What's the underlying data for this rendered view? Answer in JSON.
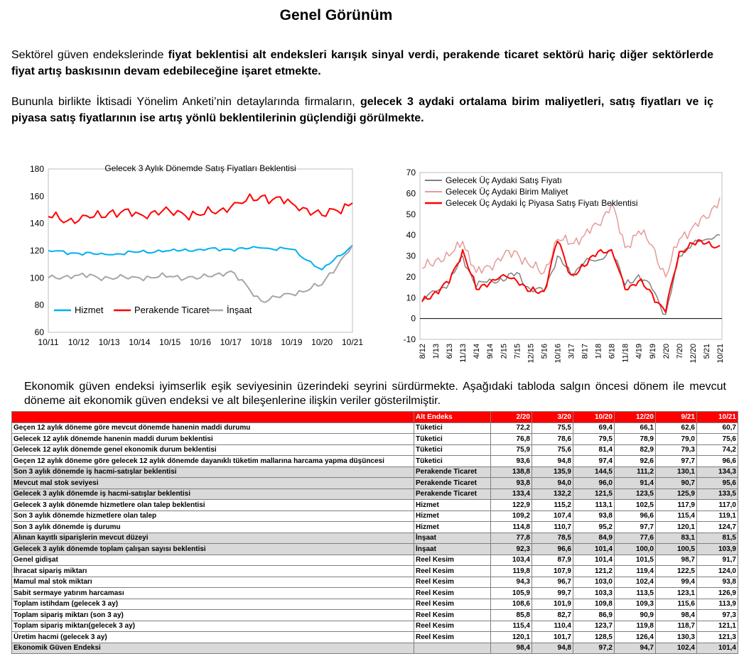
{
  "page": {
    "title": "Genel Görünüm",
    "paragraph1": {
      "normal": "Sektörel güven endekslerinde ",
      "bold": "fiyat beklentisi alt endeksleri karışık sinyal verdi, perakende ticaret sektörü hariç diğer sektörlerde fiyat artış baskısının devam edebileceğine işaret etmekte."
    },
    "paragraph2": {
      "normal": "Bununla birlikte İktisadi Yönelim Anketi’nin detaylarında firmaların, ",
      "bold": "gelecek 3 aydaki ortalama birim maliyetleri, satış fiyatları ve iç piyasa satış fiyatlarının ise artış yönlü beklentilerinin güçlendiği görülmekte."
    },
    "paragraph3": "Ekonomik güven endeksi iyimserlik eşik seviyesinin üzerindeki seyrini sürdürmekte. Aşağıdaki tabloda salgın öncesi dönem ile mevcut döneme ait ekonomik güven endeksi ve alt bileşenlerine ilişkin veriler gösterilmiştir."
  },
  "chart_data": [
    {
      "type": "line",
      "title": "Gelecek 3 Aylık Dönemde Satış Fiyatları Beklentisi",
      "x": [
        "10/11",
        "10/12",
        "10/13",
        "10/14",
        "10/15",
        "10/16",
        "10/17",
        "10/18",
        "10/19",
        "10/20",
        "10/21"
      ],
      "ylim": [
        60,
        180
      ],
      "yticks": [
        60,
        80,
        100,
        120,
        140,
        160,
        180
      ],
      "legend_position": "bottom",
      "grid": false,
      "series": [
        {
          "name": "Hizmet",
          "color": "#00b0f0",
          "values": [
            120,
            118,
            117,
            119,
            120,
            121,
            121,
            122,
            121,
            106,
            124
          ]
        },
        {
          "name": "Perakende Ticaret",
          "color": "#ff0000",
          "values": [
            145,
            142,
            148,
            147,
            149,
            146,
            152,
            160,
            155,
            146,
            155
          ]
        },
        {
          "name": "İnşaat",
          "color": "#a6a6a6",
          "values": [
            100,
            102,
            100,
            100,
            101,
            100,
            105,
            83,
            88,
            95,
            124
          ]
        }
      ]
    },
    {
      "type": "line",
      "title": "",
      "x": [
        "8/12",
        "1/13",
        "6/13",
        "11/13",
        "4/14",
        "9/14",
        "2/15",
        "7/15",
        "12/15",
        "5/16",
        "10/16",
        "3/17",
        "8/17",
        "1/18",
        "6/18",
        "11/18",
        "4/19",
        "9/19",
        "2/20",
        "7/20",
        "12/20",
        "5/21",
        "10/21"
      ],
      "ylim": [
        -10,
        70
      ],
      "yticks": [
        -10,
        0,
        10,
        20,
        30,
        40,
        50,
        60,
        70
      ],
      "legend_position": "top-left",
      "grid": false,
      "series": [
        {
          "name": "Gelecek Üç Aydaki Satış Fiyatı",
          "color": "#808080",
          "values": [
            9,
            13,
            17,
            30,
            15,
            19,
            18,
            22,
            14,
            13,
            30,
            21,
            27,
            28,
            33,
            16,
            21,
            14,
            2,
            30,
            36,
            38,
            40
          ]
        },
        {
          "name": "Gelecek Üç Aydaki Birim Maliyet",
          "color": "#e59a9a",
          "values": [
            24,
            28,
            30,
            37,
            22,
            25,
            30,
            32,
            25,
            22,
            38,
            36,
            40,
            45,
            55,
            34,
            42,
            35,
            20,
            38,
            44,
            48,
            58
          ]
        },
        {
          "name": "Gelecek Üç Aydaki İç Piyasa Satış Fiyatı Beklentisi",
          "color": "#ff0000",
          "values": [
            8,
            13,
            17,
            33,
            14,
            17,
            21,
            18,
            13,
            13,
            37,
            21,
            25,
            32,
            33,
            14,
            18,
            12,
            3,
            32,
            36,
            36,
            35
          ]
        }
      ]
    }
  ],
  "table": {
    "headers": [
      "",
      "Alt Endeks",
      "2/20",
      "3/20",
      "10/20",
      "12/20",
      "9/21",
      "10/21"
    ],
    "rows": [
      {
        "label": "Geçen 12 aylık döneme göre mevcut dönemde hanenin maddi durumu",
        "sector": "Tüketici",
        "values": [
          "72,2",
          "75,5",
          "69,4",
          "66,1",
          "62,6",
          "60,7"
        ],
        "shaded": false
      },
      {
        "label": "Gelecek 12 aylık dönemde hanenin maddi durum beklentisi",
        "sector": "Tüketici",
        "values": [
          "76,8",
          "78,6",
          "79,5",
          "78,9",
          "79,0",
          "75,6"
        ],
        "shaded": false
      },
      {
        "label": "Gelecek 12 aylık dönemde genel ekonomik durum beklentisi",
        "sector": "Tüketici",
        "values": [
          "75,9",
          "75,6",
          "81,4",
          "82,9",
          "79,3",
          "74,2"
        ],
        "shaded": false
      },
      {
        "label": "Geçen 12 aylık döneme göre gelecek 12 aylık dönemde dayanıklı tüketim mallarına harcama yapma düşüncesi",
        "sector": "Tüketici",
        "values": [
          "93,6",
          "94,8",
          "97,4",
          "92,6",
          "97,7",
          "96,6"
        ],
        "shaded": false
      },
      {
        "label": "Son 3 aylık dönemde iş hacmi-satışlar beklentisi",
        "sector": "Perakende Ticaret",
        "values": [
          "138,8",
          "135,9",
          "144,5",
          "111,2",
          "130,1",
          "134,3"
        ],
        "shaded": true
      },
      {
        "label": "Mevcut mal stok seviyesi",
        "sector": "Perakende Ticaret",
        "values": [
          "93,8",
          "94,0",
          "96,0",
          "91,4",
          "90,7",
          "95,6"
        ],
        "shaded": true
      },
      {
        "label": "Gelecek 3 aylık dönemde iş hacmi-satışlar beklentisi",
        "sector": "Perakende Ticaret",
        "values": [
          "133,4",
          "132,2",
          "121,5",
          "123,5",
          "125,9",
          "133,5"
        ],
        "shaded": true
      },
      {
        "label": "Gelecek 3 aylık dönemde hizmetlere olan talep beklentisi",
        "sector": "Hizmet",
        "values": [
          "122,9",
          "115,2",
          "113,1",
          "102,5",
          "117,9",
          "117,0"
        ],
        "shaded": false
      },
      {
        "label": "Son 3 aylık dönemde  hizmetlere olan talep",
        "sector": "Hizmet",
        "values": [
          "109,2",
          "107,4",
          "93,8",
          "96,6",
          "115,4",
          "119,1"
        ],
        "shaded": false
      },
      {
        "label": "Son 3 aylık dönemde iş  durumu",
        "sector": "Hizmet",
        "values": [
          "114,8",
          "110,7",
          "95,2",
          "97,7",
          "120,1",
          "124,7"
        ],
        "shaded": false
      },
      {
        "label": "Alınan kayıtlı siparişlerin mevcut düzeyi",
        "sector": "İnşaat",
        "values": [
          "77,8",
          "78,5",
          "84,9",
          "77,6",
          "83,1",
          "81,5"
        ],
        "shaded": true
      },
      {
        "label": "Gelecek 3 aylık dönemde toplam çalışan sayısı beklentisi",
        "sector": "İnşaat",
        "values": [
          "92,3",
          "96,6",
          "101,4",
          "100,0",
          "100,5",
          "103,9"
        ],
        "shaded": true
      },
      {
        "label": "Genel gidişat",
        "sector": "Reel Kesim",
        "values": [
          "103,4",
          "87,9",
          "101,4",
          "101,5",
          "98,7",
          "91,7"
        ],
        "shaded": false
      },
      {
        "label": "İhracat sipariş miktarı",
        "sector": "Reel Kesim",
        "values": [
          "119,8",
          "107,9",
          "121,2",
          "119,4",
          "122,5",
          "124,0"
        ],
        "shaded": false
      },
      {
        "label": "Mamul mal stok miktarı",
        "sector": "Reel Kesim",
        "values": [
          "94,3",
          "96,7",
          "103,0",
          "102,4",
          "99,4",
          "93,8"
        ],
        "shaded": false
      },
      {
        "label": "Sabit sermaye yatırım harcaması",
        "sector": "Reel Kesim",
        "values": [
          "105,9",
          "99,7",
          "103,3",
          "113,5",
          "123,1",
          "126,9"
        ],
        "shaded": false
      },
      {
        "label": "Toplam istihdam (gelecek 3 ay)",
        "sector": "Reel Kesim",
        "values": [
          "108,6",
          "101,9",
          "109,8",
          "109,3",
          "115,6",
          "113,9"
        ],
        "shaded": false
      },
      {
        "label": "Toplam sipariş miktarı (son 3 ay)",
        "sector": "Reel Kesim",
        "values": [
          "85,8",
          "82,7",
          "86,9",
          "90,9",
          "98,4",
          "97,3"
        ],
        "shaded": false
      },
      {
        "label": "Toplam sipariş miktarı(gelecek 3 ay)",
        "sector": "Reel Kesim",
        "values": [
          "115,4",
          "110,4",
          "123,7",
          "119,8",
          "118,7",
          "121,1"
        ],
        "shaded": false
      },
      {
        "label": "Üretim hacmi (gelecek 3 ay)",
        "sector": "Reel Kesim",
        "values": [
          "120,1",
          "101,7",
          "128,5",
          "126,4",
          "130,3",
          "121,3"
        ],
        "shaded": false
      },
      {
        "label": "Ekonomik Güven Endeksi",
        "sector": "",
        "values": [
          "98,4",
          "94,8",
          "97,2",
          "94,7",
          "102,4",
          "101,4"
        ],
        "shaded": true
      }
    ]
  }
}
